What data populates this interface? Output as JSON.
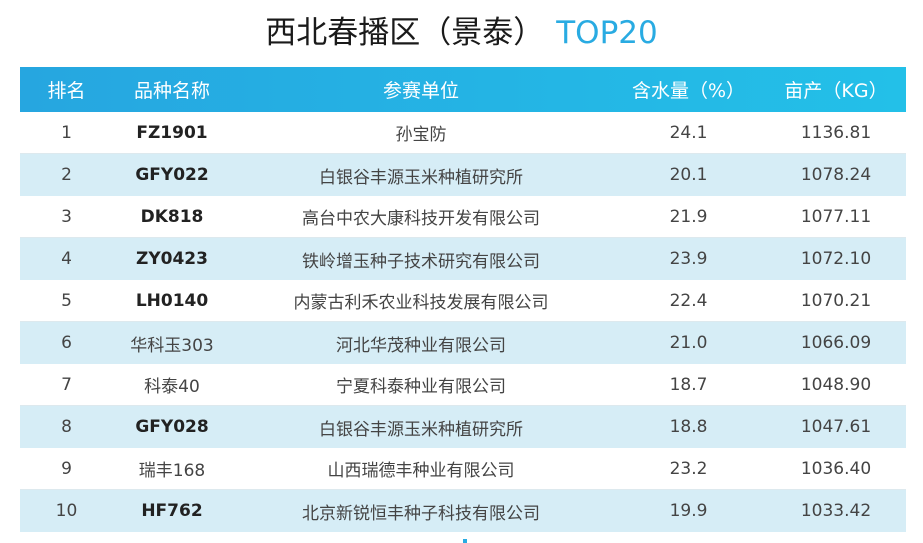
{
  "title": {
    "main": "西北春播区（景泰）",
    "accent": "TOP20"
  },
  "table": {
    "headers": {
      "rank": "排名",
      "name": "品种名称",
      "unit": "参赛单位",
      "water": "含水量（%）",
      "yield": "亩产（KG）"
    },
    "rows": [
      {
        "rank": "1",
        "name": "FZ1901",
        "unit": "孙宝防",
        "water": "24.1",
        "yield": "1136.81",
        "bold": true
      },
      {
        "rank": "2",
        "name": "GFY022",
        "unit": "白银谷丰源玉米种植研究所",
        "water": "20.1",
        "yield": "1078.24",
        "bold": true
      },
      {
        "rank": "3",
        "name": "DK818",
        "unit": "高台中农大康科技开发有限公司",
        "water": "21.9",
        "yield": "1077.11",
        "bold": true
      },
      {
        "rank": "4",
        "name": "ZY0423",
        "unit": "铁岭增玉种子技术研究有限公司",
        "water": "23.9",
        "yield": "1072.10",
        "bold": true
      },
      {
        "rank": "5",
        "name": "LH0140",
        "unit": "内蒙古利禾农业科技发展有限公司",
        "water": "22.4",
        "yield": "1070.21",
        "bold": true
      },
      {
        "rank": "6",
        "name": "华科玉303",
        "unit": "河北华茂种业有限公司",
        "water": "21.0",
        "yield": "1066.09",
        "bold": false
      },
      {
        "rank": "7",
        "name": "科泰40",
        "unit": "宁夏科泰种业有限公司",
        "water": "18.7",
        "yield": "1048.90",
        "bold": false
      },
      {
        "rank": "8",
        "name": "GFY028",
        "unit": "白银谷丰源玉米种植研究所",
        "water": "18.8",
        "yield": "1047.61",
        "bold": true
      },
      {
        "rank": "9",
        "name": "瑞丰168",
        "unit": "山西瑞德丰种业有限公司",
        "water": "23.2",
        "yield": "1036.40",
        "bold": false
      },
      {
        "rank": "10",
        "name": "HF762",
        "unit": "北京新锐恒丰种子科技有限公司",
        "water": "19.9",
        "yield": "1033.42",
        "bold": true
      }
    ]
  }
}
